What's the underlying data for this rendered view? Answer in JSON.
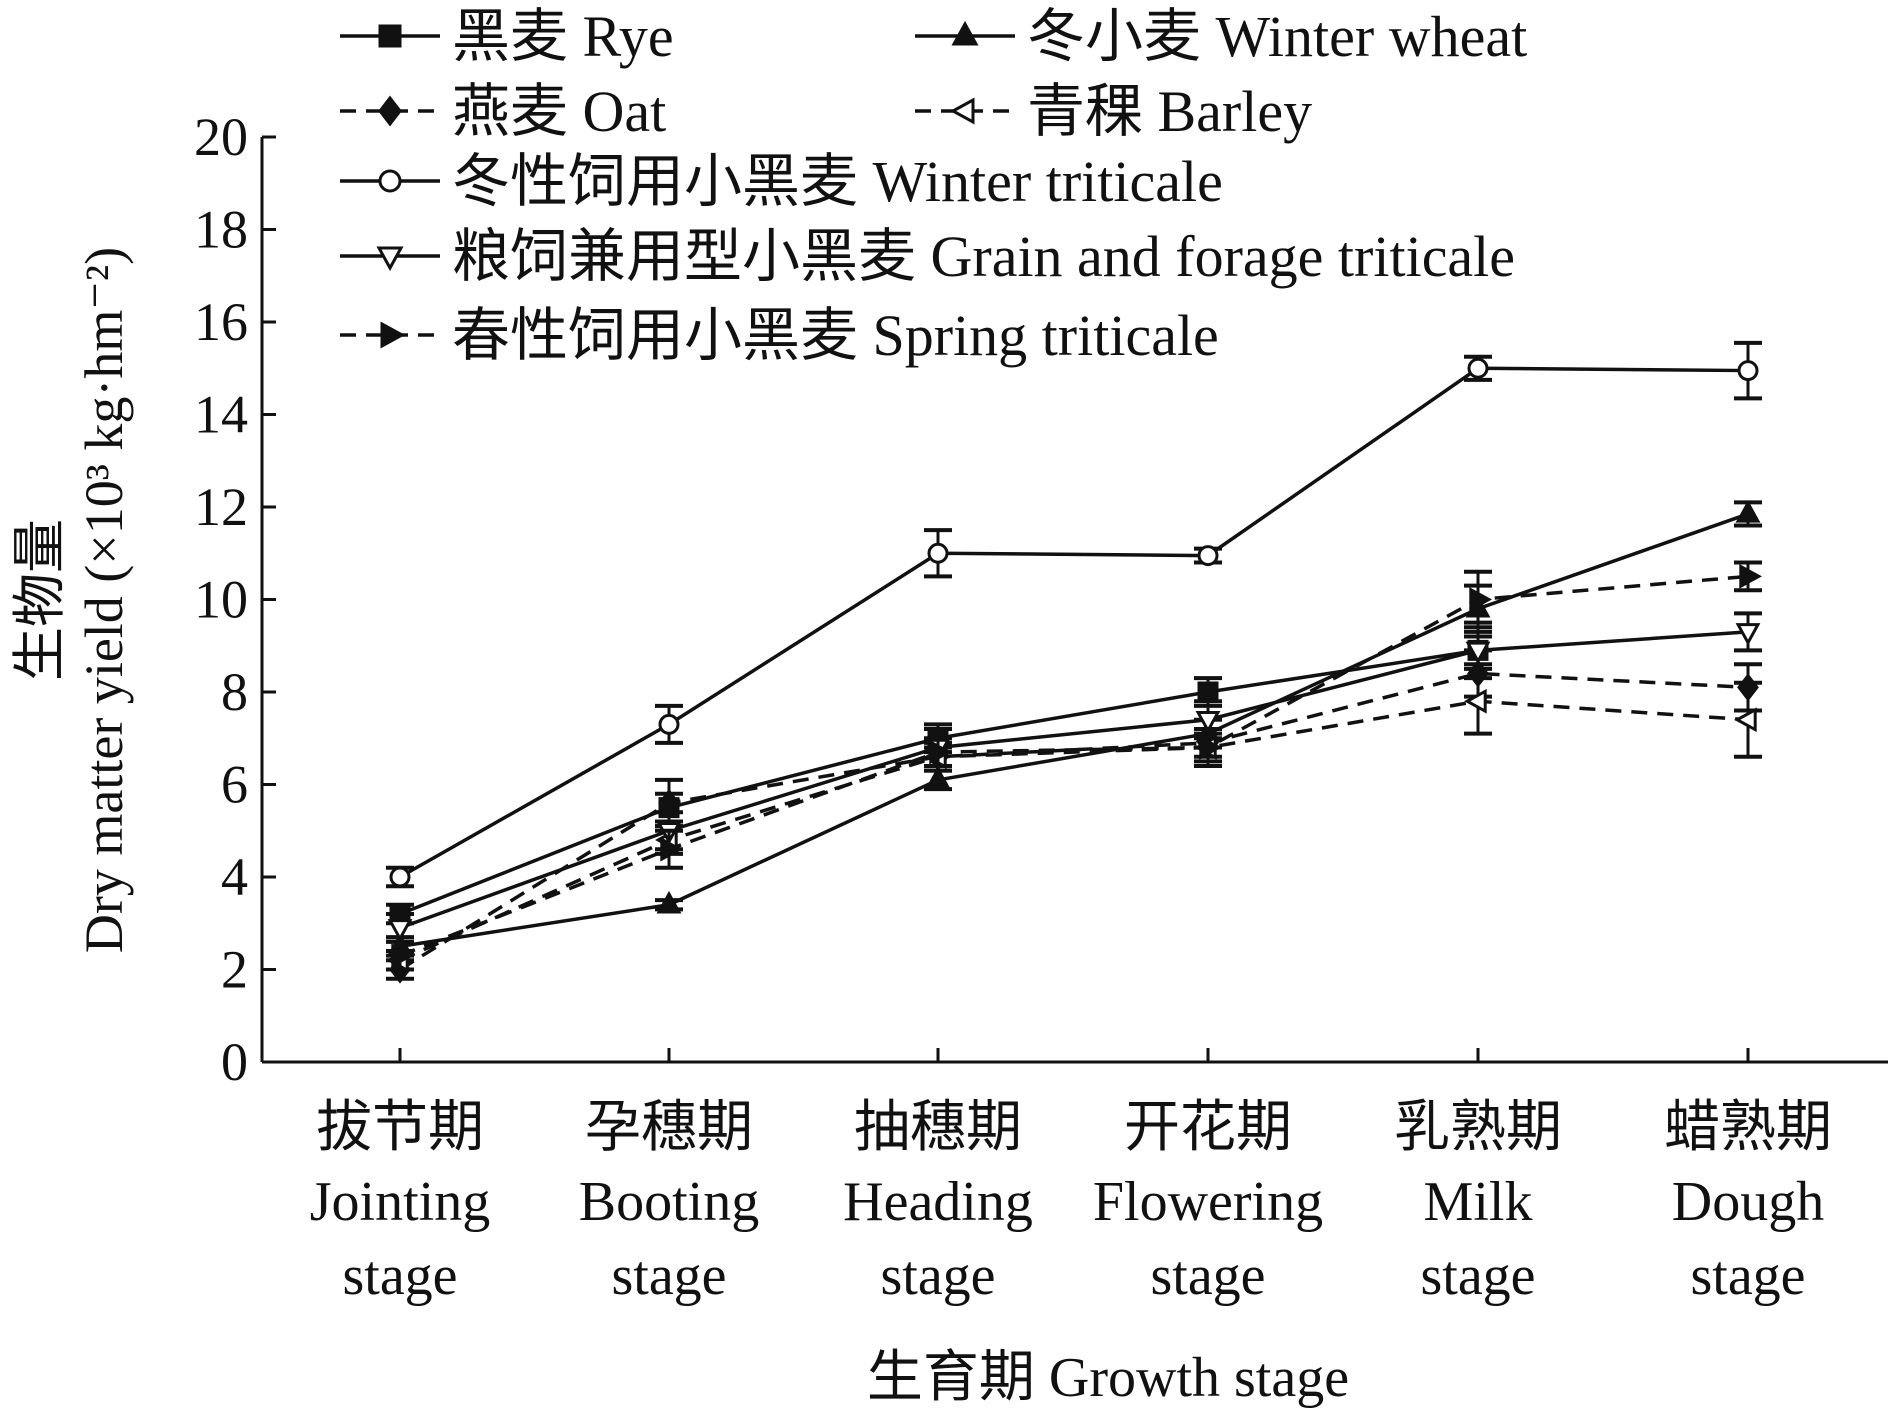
{
  "chart_data": {
    "type": "line",
    "title": "",
    "xlabel": "生育期 Growth stage",
    "ylabel_cn": "生物量",
    "ylabel": "Dry matter yield (×10³ kg·hm⁻²)",
    "ylim": [
      0,
      20
    ],
    "yticks": [
      0,
      2,
      4,
      6,
      8,
      10,
      12,
      14,
      16,
      18,
      20
    ],
    "categories": [
      {
        "cn": "拔节期",
        "en1": "Jointing",
        "en2": "stage"
      },
      {
        "cn": "孕穗期",
        "en1": "Booting",
        "en2": "stage"
      },
      {
        "cn": "抽穗期",
        "en1": "Heading",
        "en2": "stage"
      },
      {
        "cn": "开花期",
        "en1": "Flowering",
        "en2": "stage"
      },
      {
        "cn": "乳熟期",
        "en1": "Milk",
        "en2": "stage"
      },
      {
        "cn": "蜡熟期",
        "en1": "Dough",
        "en2": "stage"
      }
    ],
    "legend_position": "top",
    "series": [
      {
        "name": "黑麦 Rye",
        "marker": "square",
        "dashed": false,
        "values": [
          3.2,
          5.5,
          7.0,
          8.0,
          8.9,
          null
        ],
        "errors": [
          0.2,
          0.3,
          0.3,
          0.3,
          0.3,
          null
        ]
      },
      {
        "name": "冬小麦 Winter wheat",
        "marker": "triangle-up",
        "dashed": false,
        "values": [
          2.5,
          3.4,
          6.1,
          7.1,
          9.8,
          11.85
        ],
        "errors": [
          0.2,
          0.1,
          0.2,
          0.3,
          0.5,
          0.25
        ]
      },
      {
        "name": "燕麦 Oat",
        "marker": "diamond",
        "dashed": true,
        "values": [
          2.0,
          5.6,
          6.6,
          6.9,
          8.4,
          8.1
        ],
        "errors": [
          0.2,
          0.5,
          0.3,
          0.3,
          0.5,
          0.5
        ]
      },
      {
        "name": "青稞 Barley",
        "marker": "triangle-left-open",
        "dashed": true,
        "values": [
          2.2,
          4.8,
          6.6,
          6.8,
          7.8,
          7.4
        ],
        "errors": [
          0.2,
          0.3,
          0.2,
          0.3,
          0.7,
          0.8
        ]
      },
      {
        "name": "冬性饲用小黑麦 Winter triticale",
        "marker": "circle-open",
        "dashed": false,
        "values": [
          4.0,
          7.3,
          11.0,
          10.95,
          15.0,
          14.95
        ],
        "errors": [
          0.2,
          0.4,
          0.5,
          0.15,
          0.25,
          0.6
        ]
      },
      {
        "name": "粮饲兼用型小黑麦 Grain and forage triticale",
        "marker": "triangle-down-open",
        "dashed": false,
        "values": [
          2.9,
          5.0,
          6.8,
          7.4,
          8.9,
          9.3
        ],
        "errors": [
          0.3,
          0.4,
          0.4,
          0.4,
          0.6,
          0.4
        ]
      },
      {
        "name": "春性饲用小黑麦 Spring triticale",
        "marker": "triangle-right",
        "dashed": true,
        "values": [
          2.3,
          4.6,
          6.7,
          6.8,
          10.0,
          10.5
        ],
        "errors": [
          0.3,
          0.4,
          0.3,
          0.4,
          0.6,
          0.3
        ]
      }
    ]
  }
}
